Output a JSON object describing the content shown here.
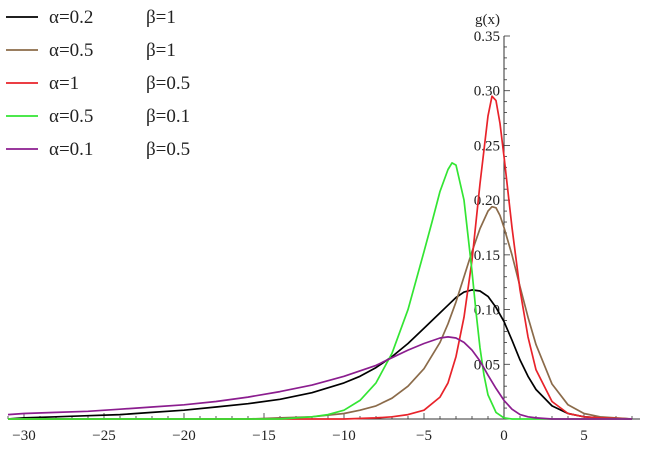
{
  "chart_data": {
    "type": "line",
    "title": "",
    "xlabel": "",
    "ylabel": "g(x)",
    "xlim": [
      -31,
      8.5
    ],
    "ylim": [
      0,
      0.35
    ],
    "x_ticks": [
      -30,
      -25,
      -20,
      -15,
      -10,
      -5,
      0,
      5
    ],
    "x_tick_labels": [
      "−30",
      "−25",
      "−20",
      "−15",
      "−10",
      "−5",
      "0",
      "5"
    ],
    "y_ticks": [
      0.05,
      0.1,
      0.15,
      0.2,
      0.25,
      0.3,
      0.35
    ],
    "y_tick_labels": [
      "0.05",
      "0.10",
      "0.15",
      "0.20",
      "0.25",
      "0.30",
      "0.35"
    ],
    "grid": false,
    "legend_position": "top-left",
    "series": [
      {
        "alpha_label": "α=0.2",
        "beta_label": "β=1",
        "color": "#000000",
        "x": [
          -31,
          -30,
          -28,
          -26,
          -24,
          -22,
          -20,
          -18,
          -16,
          -14,
          -12,
          -10,
          -9,
          -8,
          -7,
          -6,
          -5,
          -4,
          -3.5,
          -3,
          -2.5,
          -2,
          -1.5,
          -1,
          -0.5,
          0,
          0.5,
          1,
          1.5,
          2,
          3,
          4,
          5,
          6,
          8
        ],
        "y": [
          0.0,
          0.001,
          0.002,
          0.003,
          0.004,
          0.006,
          0.008,
          0.011,
          0.014,
          0.018,
          0.024,
          0.033,
          0.039,
          0.047,
          0.057,
          0.069,
          0.083,
          0.097,
          0.104,
          0.111,
          0.116,
          0.118,
          0.117,
          0.112,
          0.102,
          0.089,
          0.072,
          0.054,
          0.039,
          0.027,
          0.012,
          0.005,
          0.002,
          0.001,
          0.0
        ]
      },
      {
        "alpha_label": "α=0.5",
        "beta_label": "β=1",
        "color": "#8b6b4a",
        "x": [
          -31,
          -16,
          -14,
          -12,
          -10,
          -9,
          -8,
          -7,
          -6,
          -5,
          -4,
          -3.5,
          -3,
          -2.5,
          -2,
          -1.5,
          -1,
          -0.75,
          -0.5,
          -0.25,
          0,
          0.5,
          1,
          1.5,
          2,
          3,
          4,
          5,
          6,
          8
        ],
        "y": [
          0.0,
          0.0,
          0.001,
          0.002,
          0.005,
          0.008,
          0.012,
          0.019,
          0.03,
          0.046,
          0.07,
          0.087,
          0.107,
          0.13,
          0.153,
          0.174,
          0.19,
          0.194,
          0.193,
          0.186,
          0.175,
          0.15,
          0.121,
          0.093,
          0.068,
          0.032,
          0.013,
          0.005,
          0.002,
          0.0
        ]
      },
      {
        "alpha_label": "α=1",
        "beta_label": "β=0.5",
        "color": "#e8232a",
        "x": [
          -31,
          -10,
          -8,
          -7,
          -6,
          -5,
          -4,
          -3.5,
          -3,
          -2.5,
          -2,
          -1.5,
          -1,
          -0.75,
          -0.5,
          -0.25,
          0,
          0.5,
          1,
          1.5,
          2,
          3,
          4,
          5,
          6,
          8
        ],
        "y": [
          0.0,
          0.0,
          0.001,
          0.002,
          0.004,
          0.008,
          0.02,
          0.033,
          0.057,
          0.093,
          0.145,
          0.215,
          0.277,
          0.295,
          0.291,
          0.27,
          0.24,
          0.175,
          0.118,
          0.075,
          0.045,
          0.016,
          0.005,
          0.002,
          0.001,
          0.0
        ]
      },
      {
        "alpha_label": "α=0.5",
        "beta_label": "β=0.1",
        "color": "#33e533",
        "x": [
          -31,
          -14,
          -12,
          -11,
          -10,
          -9,
          -8,
          -7,
          -6,
          -5,
          -4.5,
          -4,
          -3.5,
          -3.25,
          -3,
          -2.5,
          -2,
          -1.75,
          -1.5,
          -1.25,
          -1,
          -0.5,
          0,
          0.5,
          1,
          8
        ],
        "y": [
          0.0,
          0.0,
          0.002,
          0.004,
          0.008,
          0.017,
          0.033,
          0.06,
          0.1,
          0.153,
          0.18,
          0.208,
          0.228,
          0.234,
          0.232,
          0.2,
          0.135,
          0.098,
          0.065,
          0.04,
          0.022,
          0.006,
          0.001,
          0.0,
          0.0,
          0.0
        ]
      },
      {
        "alpha_label": "α=0.1",
        "beta_label": "β=0.5",
        "color": "#8b1d8f",
        "x": [
          -31,
          -30,
          -28,
          -26,
          -24,
          -22,
          -20,
          -18,
          -16,
          -14,
          -12,
          -10,
          -8,
          -7,
          -6,
          -5,
          -4,
          -3.5,
          -3,
          -2.5,
          -2,
          -1.5,
          -1,
          -0.5,
          0,
          0.5,
          1,
          1.5,
          2,
          3,
          4,
          8
        ],
        "y": [
          0.004,
          0.005,
          0.006,
          0.007,
          0.009,
          0.011,
          0.013,
          0.016,
          0.02,
          0.025,
          0.031,
          0.039,
          0.049,
          0.056,
          0.063,
          0.069,
          0.074,
          0.075,
          0.074,
          0.07,
          0.063,
          0.053,
          0.04,
          0.028,
          0.017,
          0.009,
          0.004,
          0.002,
          0.001,
          0.0,
          0.0,
          0.0
        ]
      }
    ]
  }
}
